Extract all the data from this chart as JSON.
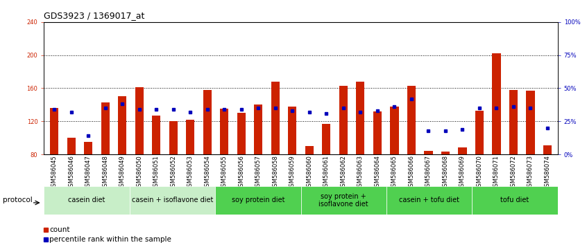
{
  "title": "GDS3923 / 1369017_at",
  "samples": [
    "GSM586045",
    "GSM586046",
    "GSM586047",
    "GSM586048",
    "GSM586049",
    "GSM586050",
    "GSM586051",
    "GSM586052",
    "GSM586053",
    "GSM586054",
    "GSM586055",
    "GSM586056",
    "GSM586057",
    "GSM586058",
    "GSM586059",
    "GSM586060",
    "GSM586061",
    "GSM586062",
    "GSM586063",
    "GSM586064",
    "GSM586065",
    "GSM586066",
    "GSM586067",
    "GSM586068",
    "GSM586069",
    "GSM586070",
    "GSM586071",
    "GSM586072",
    "GSM586073",
    "GSM586074"
  ],
  "counts": [
    136,
    100,
    95,
    143,
    150,
    161,
    127,
    120,
    122,
    158,
    135,
    130,
    140,
    168,
    138,
    90,
    117,
    163,
    168,
    132,
    138,
    163,
    84,
    83,
    88,
    133,
    202,
    158,
    157,
    91
  ],
  "percentile_ranks": [
    34,
    32,
    14,
    35,
    38,
    34,
    34,
    34,
    32,
    34,
    34,
    34,
    35,
    35,
    33,
    32,
    31,
    35,
    32,
    33,
    36,
    42,
    18,
    18,
    19,
    35,
    35,
    36,
    35,
    20
  ],
  "groups": [
    {
      "label": "casein diet",
      "start": 0,
      "end": 5
    },
    {
      "label": "casein + isoflavone diet",
      "start": 5,
      "end": 10
    },
    {
      "label": "soy protein diet",
      "start": 10,
      "end": 15
    },
    {
      "label": "soy protein +\nisoflavone diet",
      "start": 15,
      "end": 20
    },
    {
      "label": "casein + tofu diet",
      "start": 20,
      "end": 25
    },
    {
      "label": "tofu diet",
      "start": 25,
      "end": 30
    }
  ],
  "group_colors": [
    "#c8eec8",
    "#c8eec8",
    "#50d050",
    "#50d050",
    "#50d050",
    "#50d050"
  ],
  "ylim_left": [
    80,
    240
  ],
  "ylim_right": [
    0,
    100
  ],
  "yticks_left": [
    80,
    120,
    160,
    200,
    240
  ],
  "yticks_right": [
    0,
    25,
    50,
    75,
    100
  ],
  "ytick_labels_left": [
    "80",
    "120",
    "160",
    "200",
    "240"
  ],
  "ytick_labels_right": [
    "0%",
    "25%",
    "50%",
    "75%",
    "100%"
  ],
  "bar_color": "#cc2200",
  "dot_color": "#0000bb",
  "bg_color": "#ffffff",
  "title_fontsize": 9,
  "tick_fontsize": 6,
  "group_fontsize": 7,
  "label_fontsize": 7.5
}
